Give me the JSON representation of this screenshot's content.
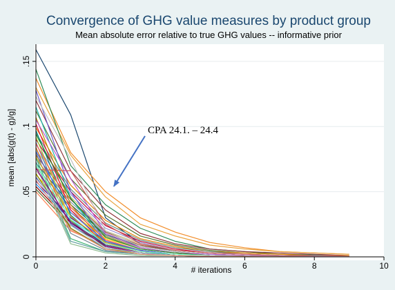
{
  "chart_data": {
    "type": "line",
    "title": "Convergence of GHG value measures by product group",
    "subtitle": "Mean absolute error relative to true GHG values -- informative prior",
    "xlabel": "# iterations",
    "ylabel": "mean [abs(g(t) - g)/g]",
    "xlim": [
      0,
      10
    ],
    "ylim": [
      0,
      0.16
    ],
    "xticks": [
      0,
      2,
      4,
      6,
      8,
      10
    ],
    "xtick_labels": [
      "0",
      "2",
      "4",
      "6",
      "8",
      "10"
    ],
    "yticks": [
      0,
      0.05,
      0.1,
      0.15
    ],
    "ytick_labels": [
      "0",
      ".05",
      ".1",
      ".15"
    ],
    "grid": true,
    "legend": "none",
    "x": [
      0,
      1,
      2,
      3,
      4,
      5,
      6,
      7,
      8,
      9
    ],
    "series": [
      {
        "color": "#1a476f",
        "values": [
          0.159,
          0.109,
          0.03,
          0.01,
          0.004,
          0.002,
          0.001,
          0.0005,
          0.0003,
          0.0002
        ]
      },
      {
        "color": "#f28e2b",
        "values": [
          0.137,
          0.08,
          0.05,
          0.03,
          0.019,
          0.011,
          0.007,
          0.004,
          0.003,
          0.002
        ]
      },
      {
        "color": "#e8a23c",
        "values": [
          0.13,
          0.078,
          0.046,
          0.025,
          0.016,
          0.009,
          0.006,
          0.004,
          0.003,
          0.002
        ]
      },
      {
        "color": "#2e8b57",
        "values": [
          0.144,
          0.07,
          0.04,
          0.022,
          0.012,
          0.006,
          0.004,
          0.002,
          0.0015,
          0.001
        ]
      },
      {
        "color": "#90353b",
        "values": [
          0.12,
          0.066,
          0.036,
          0.018,
          0.01,
          0.006,
          0.004,
          0.003,
          0.002,
          0.001
        ]
      },
      {
        "color": "#55752f",
        "values": [
          0.112,
          0.06,
          0.032,
          0.016,
          0.009,
          0.005,
          0.003,
          0.002,
          0.001,
          0.001
        ]
      },
      {
        "color": "#e37e00",
        "values": [
          0.099,
          0.055,
          0.028,
          0.014,
          0.008,
          0.004,
          0.003,
          0.002,
          0.001,
          0.001
        ]
      },
      {
        "color": "#6e8e84",
        "values": [
          0.095,
          0.052,
          0.026,
          0.013,
          0.007,
          0.004,
          0.002,
          0.001,
          0.001,
          0.0005
        ]
      },
      {
        "color": "#c10534",
        "values": [
          0.09,
          0.05,
          0.024,
          0.012,
          0.006,
          0.003,
          0.002,
          0.001,
          0.0008,
          0.0005
        ]
      },
      {
        "color": "#938dd2",
        "values": [
          0.086,
          0.048,
          0.022,
          0.011,
          0.005,
          0.003,
          0.002,
          0.001,
          0.0007,
          0.0004
        ]
      },
      {
        "color": "#cac27e",
        "values": [
          0.082,
          0.046,
          0.02,
          0.01,
          0.005,
          0.003,
          0.002,
          0.001,
          0.0006,
          0.0004
        ]
      },
      {
        "color": "#a0522d",
        "values": [
          0.078,
          0.044,
          0.019,
          0.009,
          0.004,
          0.002,
          0.001,
          0.0008,
          0.0005,
          0.0003
        ]
      },
      {
        "color": "#7b92a8",
        "values": [
          0.075,
          0.042,
          0.018,
          0.008,
          0.004,
          0.002,
          0.001,
          0.0007,
          0.0004,
          0.0003
        ]
      },
      {
        "color": "#2d6d66",
        "values": [
          0.072,
          0.04,
          0.017,
          0.008,
          0.004,
          0.002,
          0.001,
          0.0006,
          0.0004,
          0.0002
        ]
      },
      {
        "color": "#9c8847",
        "values": [
          0.069,
          0.038,
          0.016,
          0.007,
          0.003,
          0.002,
          0.001,
          0.0005,
          0.0003,
          0.0002
        ]
      },
      {
        "color": "#bfa19c",
        "values": [
          0.066,
          0.036,
          0.015,
          0.007,
          0.003,
          0.002,
          0.001,
          0.0005,
          0.0003,
          0.0002
        ]
      },
      {
        "color": "#ffd200",
        "values": [
          0.063,
          0.034,
          0.014,
          0.006,
          0.003,
          0.001,
          0.0008,
          0.0004,
          0.0003,
          0.0002
        ]
      },
      {
        "color": "#d9e6eb",
        "values": [
          0.06,
          0.032,
          0.013,
          0.006,
          0.003,
          0.001,
          0.0007,
          0.0004,
          0.0002,
          0.0001
        ]
      },
      {
        "color": "#4b0082",
        "values": [
          0.058,
          0.03,
          0.012,
          0.005,
          0.002,
          0.001,
          0.0006,
          0.0003,
          0.0002,
          0.0001
        ]
      },
      {
        "color": "#1e90ff",
        "values": [
          0.056,
          0.028,
          0.011,
          0.005,
          0.002,
          0.001,
          0.0005,
          0.0003,
          0.0002,
          0.0001
        ]
      },
      {
        "color": "#8b0000",
        "values": [
          0.054,
          0.026,
          0.01,
          0.004,
          0.002,
          0.001,
          0.0005,
          0.0003,
          0.0002,
          0.0001
        ]
      },
      {
        "color": "#556b2f",
        "values": [
          0.052,
          0.024,
          0.009,
          0.004,
          0.002,
          0.001,
          0.0004,
          0.0002,
          0.0001,
          0.0001
        ]
      },
      {
        "color": "#ff7f50",
        "values": [
          0.05,
          0.02,
          0.008,
          0.004,
          0.002,
          0.001,
          0.0004,
          0.0002,
          0.0001,
          0.0001
        ]
      },
      {
        "color": "#6a5acd",
        "values": [
          0.128,
          0.05,
          0.012,
          0.005,
          0.002,
          0.001,
          0.0005,
          0.0003,
          0.0002,
          0.0001
        ]
      },
      {
        "color": "#20b2aa",
        "values": [
          0.115,
          0.045,
          0.011,
          0.005,
          0.002,
          0.001,
          0.0005,
          0.0003,
          0.0002,
          0.0001
        ]
      },
      {
        "color": "#b8860b",
        "values": [
          0.107,
          0.04,
          0.01,
          0.004,
          0.002,
          0.001,
          0.0005,
          0.0003,
          0.0002,
          0.0001
        ]
      },
      {
        "color": "#dc143c",
        "values": [
          0.102,
          0.036,
          0.009,
          0.004,
          0.002,
          0.001,
          0.0004,
          0.0002,
          0.0001,
          0.0001
        ]
      },
      {
        "color": "#008080",
        "values": [
          0.097,
          0.032,
          0.008,
          0.003,
          0.002,
          0.001,
          0.0004,
          0.0002,
          0.0001,
          0.0001
        ]
      },
      {
        "color": "#9acd32",
        "values": [
          0.092,
          0.028,
          0.007,
          0.003,
          0.001,
          0.001,
          0.0004,
          0.0002,
          0.0001,
          0.0001
        ]
      },
      {
        "color": "#4682b4",
        "values": [
          0.088,
          0.025,
          0.006,
          0.003,
          0.001,
          0.0007,
          0.0003,
          0.0002,
          0.0001,
          0.0001
        ]
      },
      {
        "color": "#d2691e",
        "values": [
          0.084,
          0.022,
          0.006,
          0.003,
          0.001,
          0.0006,
          0.0003,
          0.0002,
          0.0001,
          0.0001
        ]
      },
      {
        "color": "#708090",
        "values": [
          0.08,
          0.018,
          0.005,
          0.002,
          0.001,
          0.0005,
          0.0003,
          0.0002,
          0.0001,
          0.0001
        ]
      },
      {
        "color": "#3cb371",
        "values": [
          0.076,
          0.014,
          0.004,
          0.002,
          0.001,
          0.0005,
          0.0002,
          0.0001,
          0.0001,
          0.0001
        ]
      },
      {
        "color": "#5f9ea0",
        "values": [
          0.073,
          0.012,
          0.004,
          0.002,
          0.001,
          0.0004,
          0.0002,
          0.0001,
          0.0001,
          0.0001
        ]
      },
      {
        "color": "#8fbc8f",
        "values": [
          0.07,
          0.01,
          0.003,
          0.001,
          0.001,
          0.0004,
          0.0002,
          0.0001,
          0.0001,
          0.0001
        ]
      },
      {
        "color": "#cd5c5c",
        "values": [
          0.067,
          0.066,
          0.025,
          0.01,
          0.005,
          0.003,
          0.002,
          0.001,
          0.0006,
          0.0004
        ]
      },
      {
        "color": "#808000",
        "values": [
          0.064,
          0.022,
          0.006,
          0.003,
          0.001,
          0.0006,
          0.0003,
          0.0002,
          0.0001,
          0.0001
        ]
      },
      {
        "color": "#483d8b",
        "values": [
          0.061,
          0.027,
          0.009,
          0.004,
          0.002,
          0.001,
          0.0004,
          0.0002,
          0.0001,
          0.0001
        ]
      },
      {
        "color": "#c0c0c0",
        "values": [
          0.123,
          0.075,
          0.02,
          0.008,
          0.004,
          0.002,
          0.001,
          0.0005,
          0.0003,
          0.0002
        ]
      },
      {
        "color": "#ba55d3",
        "values": [
          0.105,
          0.06,
          0.018,
          0.007,
          0.003,
          0.002,
          0.001,
          0.0005,
          0.0003,
          0.0002
        ]
      },
      {
        "color": "#228b22",
        "values": [
          0.094,
          0.045,
          0.015,
          0.006,
          0.003,
          0.001,
          0.0006,
          0.0003,
          0.0002,
          0.0001
        ]
      },
      {
        "color": "#ff6347",
        "values": [
          0.087,
          0.038,
          0.013,
          0.005,
          0.002,
          0.001,
          0.0005,
          0.0003,
          0.0002,
          0.0001
        ]
      },
      {
        "color": "#4169e1",
        "values": [
          0.081,
          0.034,
          0.012,
          0.005,
          0.002,
          0.001,
          0.0005,
          0.0003,
          0.0002,
          0.0001
        ]
      },
      {
        "color": "#daa520",
        "values": [
          0.077,
          0.031,
          0.011,
          0.004,
          0.002,
          0.001,
          0.0005,
          0.0002,
          0.0001,
          0.0001
        ]
      },
      {
        "color": "#7fffd4",
        "values": [
          0.071,
          0.029,
          0.01,
          0.004,
          0.002,
          0.001,
          0.0004,
          0.0002,
          0.0001,
          0.0001
        ]
      },
      {
        "color": "#800080",
        "values": [
          0.068,
          0.026,
          0.008,
          0.003,
          0.001,
          0.0007,
          0.0003,
          0.0002,
          0.0001,
          0.0001
        ]
      },
      {
        "color": "#b0c4de",
        "values": [
          0.062,
          0.024,
          0.007,
          0.003,
          0.001,
          0.0006,
          0.0003,
          0.0002,
          0.0001,
          0.0001
        ]
      },
      {
        "color": "#e9967a",
        "values": [
          0.059,
          0.021,
          0.006,
          0.002,
          0.001,
          0.0005,
          0.0003,
          0.0002,
          0.0001,
          0.0001
        ]
      }
    ],
    "annotations": [
      {
        "text": "CPA 24.1. – 24.4",
        "x": 2.2,
        "y": 0.052,
        "arrow": true
      }
    ]
  }
}
